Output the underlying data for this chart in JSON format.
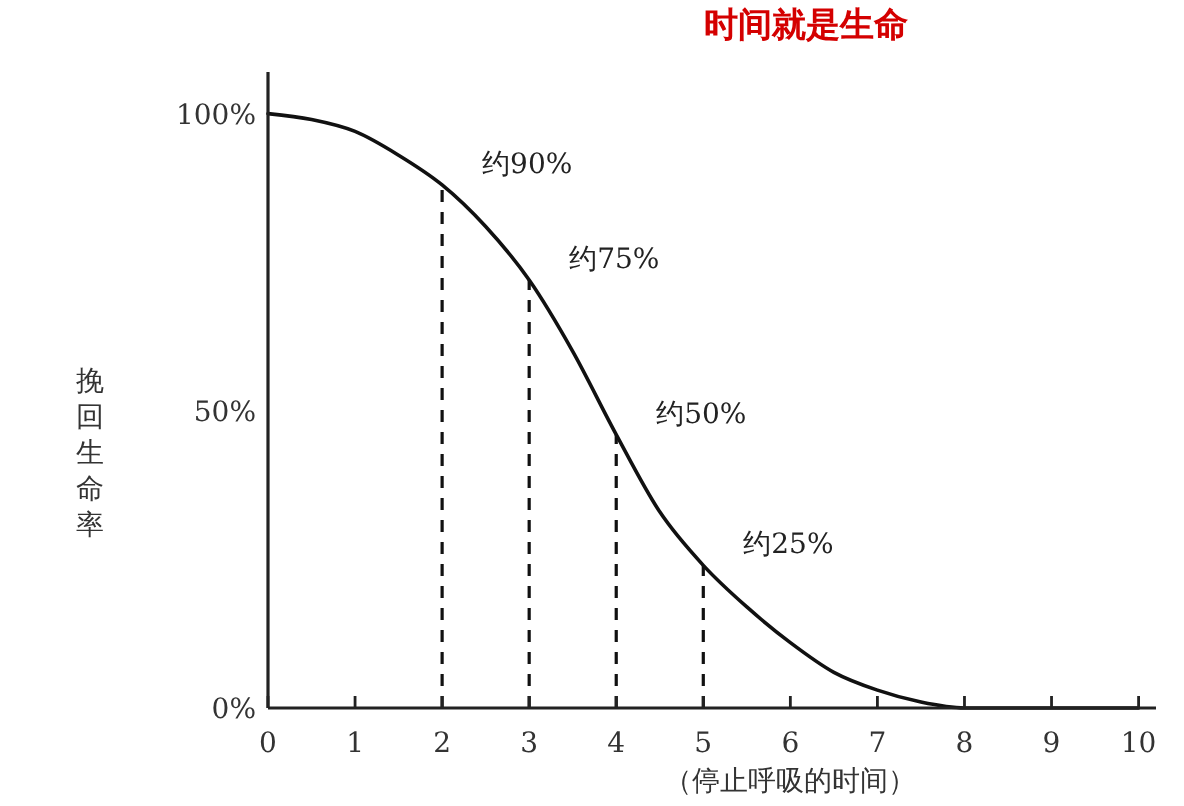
{
  "chart_data": {
    "type": "line",
    "title": "时间就是生命",
    "xlabel": "（停止呼吸的时间）",
    "ylabel": "挽回生命率",
    "x": [
      0,
      0.5,
      1,
      1.5,
      2,
      2.5,
      3,
      3.5,
      4,
      4.5,
      5,
      5.5,
      6,
      6.5,
      7,
      7.5,
      8,
      9,
      10
    ],
    "series": [
      {
        "color": "#111111",
        "values": [
          100,
          99,
          97,
          93,
          88,
          81,
          72,
          60,
          46,
          33,
          24,
          17,
          11,
          6,
          3,
          1,
          0,
          0,
          0
        ]
      }
    ],
    "xlim": [
      0,
      10.2
    ],
    "xticks": [
      0,
      1,
      2,
      3,
      4,
      5,
      6,
      7,
      8,
      9,
      10
    ],
    "ylim": [
      0,
      107
    ],
    "yticks": [
      {
        "value": 0,
        "label": "0%"
      },
      {
        "value": 50,
        "label": "50%"
      },
      {
        "value": 100,
        "label": "100%"
      }
    ],
    "ref_lines": [
      {
        "axis": "x",
        "value": 2,
        "label": "约90%",
        "line_style": "dashed"
      },
      {
        "axis": "x",
        "value": 3,
        "label": "约75%",
        "line_style": "dashed"
      },
      {
        "axis": "x",
        "value": 4,
        "label": "约50%",
        "line_style": "dashed"
      },
      {
        "axis": "x",
        "value": 5,
        "label": "约25%",
        "line_style": "dashed"
      }
    ],
    "grid": false,
    "marker": "none",
    "line_style": "solid"
  }
}
